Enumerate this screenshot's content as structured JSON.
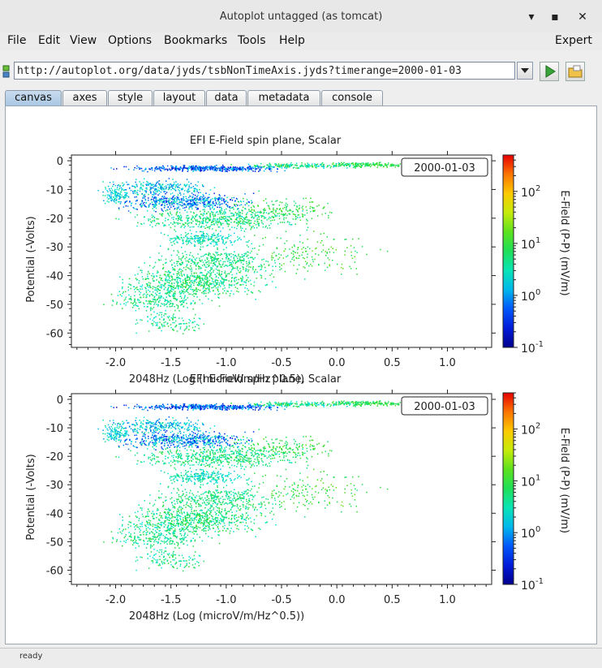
{
  "window": {
    "title": "Autoplot untagged (as tomcat)",
    "minimize": "▾",
    "maximize": "▪",
    "close": "✕"
  },
  "menu": [
    "File",
    "Edit",
    "View",
    "Options",
    "Bookmarks",
    "Tools",
    "Help"
  ],
  "menu_right": "Expert",
  "url": "http://autoplot.org/data/jyds/tsbNonTimeAxis.jyds?timerange=2000-01-03",
  "tabs": [
    "canvas",
    "axes",
    "style",
    "layout",
    "data",
    "metadata",
    "console"
  ],
  "active_tab": "canvas",
  "status": "ready",
  "colors": {
    "accent_tab": "#aac7e3",
    "play_green": "#3aa33a"
  },
  "chart_data": [
    {
      "type": "heatmap",
      "title": "EFI  E-Field spin plane, Scalar",
      "xlabel": "2048Hz (Log (microV/m/Hz^0.5))",
      "ylabel": "Potential (-Volts)",
      "zlabel": "E-Field (P-P) (mV/m)",
      "xlim": [
        -2.4,
        1.4
      ],
      "ylim": [
        -65,
        2
      ],
      "xticks": [
        -2.0,
        -1.5,
        -1.0,
        -0.5,
        0.0,
        0.5,
        1.0
      ],
      "xtick_labels": [
        "-2.0",
        "-1.5",
        "-1.0",
        "-0.5",
        "0.0",
        "0.5",
        "1.0"
      ],
      "yticks": [
        0,
        -10,
        -20,
        -30,
        -40,
        -50,
        -60
      ],
      "ytick_labels": [
        "0",
        "-10",
        "-20",
        "-30",
        "-40",
        "-50",
        "-60"
      ],
      "zscale": "log",
      "zlim": [
        0.1,
        500
      ],
      "zticks": [
        {
          "base": "10",
          "exp": "-1"
        },
        {
          "base": "10",
          "exp": "0"
        },
        {
          "base": "10",
          "exp": "1"
        },
        {
          "base": "10",
          "exp": "2"
        }
      ],
      "annotation": "2000-01-03"
    },
    {
      "type": "heatmap",
      "title": "EFI  E-Field spin plane, Scalar",
      "xlabel": "2048Hz (Log (microV/m/Hz^0.5))",
      "ylabel": "Potential (-Volts)",
      "zlabel": "E-Field (P-P) (mV/m)",
      "xlim": [
        -2.4,
        1.4
      ],
      "ylim": [
        -65,
        2
      ],
      "xticks": [
        -2.0,
        -1.5,
        -1.0,
        -0.5,
        0.0,
        0.5,
        1.0
      ],
      "xtick_labels": [
        "-2.0",
        "-1.5",
        "-1.0",
        "-0.5",
        "0.0",
        "0.5",
        "1.0"
      ],
      "yticks": [
        0,
        -10,
        -20,
        -30,
        -40,
        -50,
        -60
      ],
      "ytick_labels": [
        "0",
        "-10",
        "-20",
        "-30",
        "-40",
        "-50",
        "-60"
      ],
      "zscale": "log",
      "zlim": [
        0.1,
        500
      ],
      "zticks": [
        {
          "base": "10",
          "exp": "-1"
        },
        {
          "base": "10",
          "exp": "0"
        },
        {
          "base": "10",
          "exp": "1"
        },
        {
          "base": "10",
          "exp": "2"
        }
      ],
      "annotation": "2000-01-03"
    }
  ]
}
